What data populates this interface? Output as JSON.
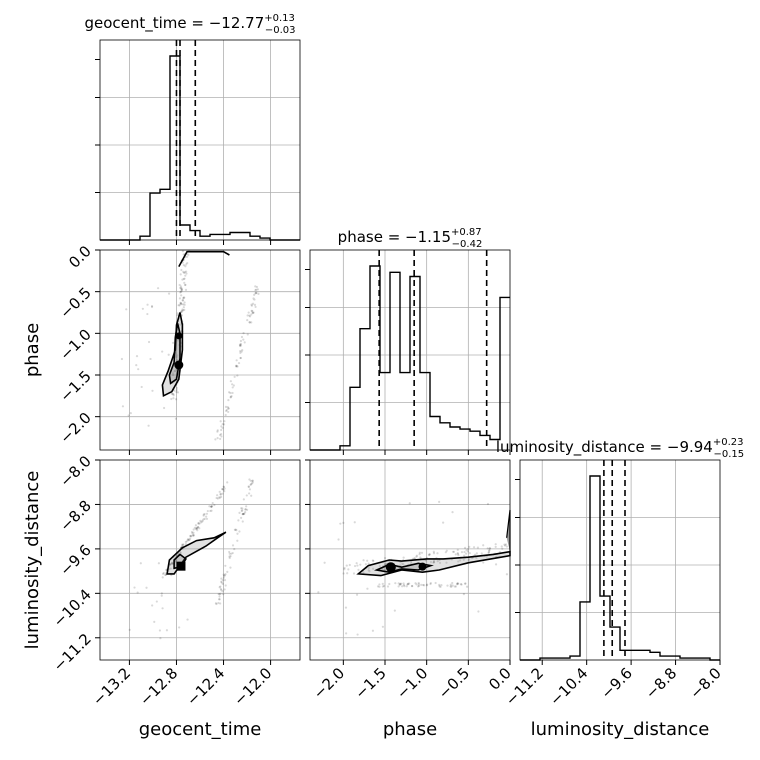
{
  "chart_data": {
    "type": "corner",
    "parameters": [
      "geocent_time",
      "phase",
      "luminosity_distance"
    ],
    "titles": [
      {
        "name": "geocent_time",
        "median": "−12.77",
        "plus": "+0.13",
        "minus": "−0.03"
      },
      {
        "name": "phase",
        "median": "−1.15",
        "plus": "+0.87",
        "minus": "−0.42"
      },
      {
        "name": "luminosity_distance",
        "median": "−9.94",
        "plus": "+0.23",
        "minus": "−0.15"
      }
    ],
    "axis_labels": {
      "geocent_time": "geocent_time",
      "phase": "phase",
      "luminosity_distance": "luminosity_distance"
    },
    "ranges": {
      "geocent_time": [
        -13.45,
        -11.75
      ],
      "phase": [
        -2.4,
        0.0
      ],
      "luminosity_distance": [
        -11.6,
        -8.0
      ]
    },
    "ticks": {
      "geocent_time": {
        "values": [
          -13.2,
          -12.8,
          -12.4,
          -12.0
        ],
        "labels": [
          "−13.2",
          "−12.8",
          "−12.4",
          "−12.0"
        ]
      },
      "phase": {
        "values": [
          -2.0,
          -1.5,
          -1.0,
          -0.5,
          0.0
        ],
        "labels": [
          "−2.0",
          "−1.5",
          "−1.0",
          "−0.5",
          "0.0"
        ]
      },
      "luminosity_distance": {
        "values": [
          -11.2,
          -10.4,
          -9.6,
          -8.8,
          -8.0
        ],
        "labels": [
          "−11.2",
          "−10.4",
          "−9.6",
          "−8.8",
          "−8.0"
        ]
      }
    },
    "quantiles": {
      "geocent_time": [
        -12.8,
        -12.77,
        -12.64
      ],
      "phase": [
        -1.57,
        -1.15,
        -0.28
      ],
      "luminosity_distance": [
        -10.09,
        -9.94,
        -9.71
      ]
    },
    "histograms": {
      "geocent_time": {
        "edges_start": -13.45,
        "bin_width": 0.085,
        "counts": [
          0,
          0,
          0,
          0,
          0.02,
          0.25,
          0.27,
          0.98,
          0.08,
          0.05,
          0.02,
          0.03,
          0.03,
          0.04,
          0.04,
          0.02,
          0.01,
          0,
          0,
          0
        ]
      },
      "phase": {
        "edges_start": -2.4,
        "bin_width": 0.12,
        "counts": [
          0,
          0,
          0,
          0.02,
          0.3,
          0.58,
          0.88,
          0.37,
          0.85,
          0.37,
          0.83,
          0.37,
          0.16,
          0.13,
          0.11,
          0.1,
          0.09,
          0.07,
          0.05,
          0.73
        ]
      },
      "luminosity_distance": {
        "edges_start": -11.6,
        "bin_width": 0.18,
        "counts": [
          0,
          0,
          0.01,
          0.01,
          0.01,
          0.02,
          0.3,
          0.95,
          0.33,
          0.17,
          0.05,
          0.05,
          0.05,
          0.04,
          0.02,
          0.02,
          0.01,
          0.01,
          0.01,
          0.0
        ]
      }
    },
    "grid": true,
    "legend": "none"
  }
}
